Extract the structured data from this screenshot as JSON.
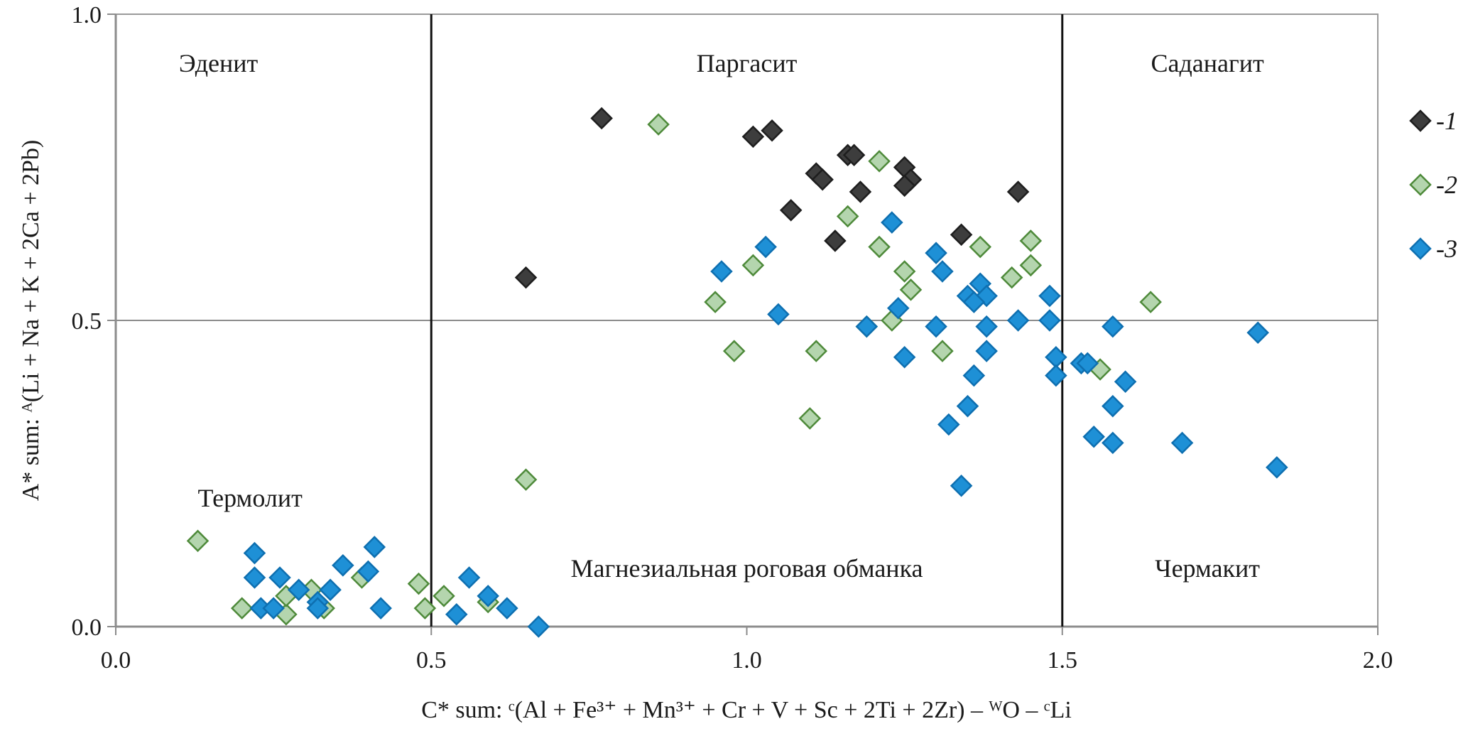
{
  "chart_data": {
    "type": "scatter",
    "title": "",
    "xlabel": "C* sum: ᶜ(Al + Fe³⁺ + Mn³⁺ + Cr + V + Sc + 2Ti + 2Zr) – ᵂO – ᶜLi",
    "ylabel": "A* sum: ᴬ(Li + Na + K + 2Ca + 2Pb)",
    "xlim": [
      0.0,
      2.0
    ],
    "ylim": [
      0.0,
      1.0
    ],
    "x_ticks": [
      "0.0",
      "0.5",
      "1.0",
      "1.5",
      "2.0"
    ],
    "y_ticks": [
      "0.0",
      "0.5",
      "1.0"
    ],
    "grid": "horizontal line at 0.5",
    "boundaries_x": [
      0.5,
      1.5
    ],
    "boundary_y": 0.5,
    "legend_position": "right",
    "fields": [
      {
        "label": "Эденит",
        "x": 0.1,
        "y": 0.92
      },
      {
        "label": "Паргасит",
        "x": 1.0,
        "y": 0.92
      },
      {
        "label": "Саданагит",
        "x": 1.73,
        "y": 0.92
      },
      {
        "label": "Термолит",
        "x": 0.13,
        "y": 0.21
      },
      {
        "label": "Магнезиальная роговая обманка",
        "x": 1.0,
        "y": 0.095
      },
      {
        "label": "Чермакит",
        "x": 1.73,
        "y": 0.095
      }
    ],
    "series": [
      {
        "name": "-1",
        "color": "#3d3d3d",
        "stroke": "#1e1e1e",
        "points": [
          [
            0.77,
            0.83
          ],
          [
            1.01,
            0.8
          ],
          [
            1.04,
            0.81
          ],
          [
            1.16,
            0.77
          ],
          [
            1.17,
            0.77
          ],
          [
            1.11,
            0.74
          ],
          [
            1.12,
            0.73
          ],
          [
            1.18,
            0.71
          ],
          [
            1.25,
            0.75
          ],
          [
            1.26,
            0.73
          ],
          [
            1.25,
            0.72
          ],
          [
            1.43,
            0.71
          ],
          [
            1.07,
            0.68
          ],
          [
            1.14,
            0.63
          ],
          [
            1.34,
            0.64
          ],
          [
            0.65,
            0.57
          ]
        ]
      },
      {
        "name": "-2",
        "color": "#b4d5ae",
        "stroke": "#4e8a3a",
        "points": [
          [
            0.86,
            0.82
          ],
          [
            1.21,
            0.76
          ],
          [
            1.16,
            0.67
          ],
          [
            1.21,
            0.62
          ],
          [
            1.37,
            0.62
          ],
          [
            1.45,
            0.63
          ],
          [
            1.01,
            0.59
          ],
          [
            1.25,
            0.58
          ],
          [
            1.42,
            0.57
          ],
          [
            1.45,
            0.59
          ],
          [
            0.95,
            0.53
          ],
          [
            1.26,
            0.55
          ],
          [
            1.64,
            0.53
          ],
          [
            1.19,
            0.49
          ],
          [
            1.23,
            0.5
          ],
          [
            0.98,
            0.45
          ],
          [
            1.11,
            0.45
          ],
          [
            1.31,
            0.45
          ],
          [
            1.56,
            0.42
          ],
          [
            1.1,
            0.34
          ],
          [
            0.65,
            0.24
          ],
          [
            0.13,
            0.14
          ],
          [
            0.2,
            0.03
          ],
          [
            0.27,
            0.02
          ],
          [
            0.27,
            0.05
          ],
          [
            0.31,
            0.06
          ],
          [
            0.33,
            0.03
          ],
          [
            0.39,
            0.08
          ],
          [
            0.48,
            0.07
          ],
          [
            0.49,
            0.03
          ],
          [
            0.52,
            0.05
          ],
          [
            0.59,
            0.04
          ]
        ]
      },
      {
        "name": "-3",
        "color": "#1e90d6",
        "stroke": "#0e6fb0",
        "points": [
          [
            1.23,
            0.66
          ],
          [
            1.03,
            0.62
          ],
          [
            1.3,
            0.61
          ],
          [
            0.96,
            0.58
          ],
          [
            1.31,
            0.58
          ],
          [
            1.37,
            0.56
          ],
          [
            1.38,
            0.54
          ],
          [
            1.35,
            0.54
          ],
          [
            1.36,
            0.53
          ],
          [
            1.48,
            0.54
          ],
          [
            1.05,
            0.51
          ],
          [
            1.24,
            0.52
          ],
          [
            1.19,
            0.49
          ],
          [
            1.3,
            0.49
          ],
          [
            1.38,
            0.49
          ],
          [
            1.43,
            0.5
          ],
          [
            1.48,
            0.5
          ],
          [
            1.58,
            0.49
          ],
          [
            1.81,
            0.48
          ],
          [
            1.25,
            0.44
          ],
          [
            1.38,
            0.45
          ],
          [
            1.49,
            0.44
          ],
          [
            1.53,
            0.43
          ],
          [
            1.54,
            0.43
          ],
          [
            1.36,
            0.41
          ],
          [
            1.49,
            0.41
          ],
          [
            1.6,
            0.4
          ],
          [
            1.35,
            0.36
          ],
          [
            1.58,
            0.36
          ],
          [
            1.32,
            0.33
          ],
          [
            1.55,
            0.31
          ],
          [
            1.58,
            0.3
          ],
          [
            1.69,
            0.3
          ],
          [
            1.84,
            0.26
          ],
          [
            1.34,
            0.23
          ],
          [
            0.22,
            0.12
          ],
          [
            0.41,
            0.13
          ],
          [
            0.22,
            0.08
          ],
          [
            0.36,
            0.1
          ],
          [
            0.4,
            0.09
          ],
          [
            0.26,
            0.08
          ],
          [
            0.56,
            0.08
          ],
          [
            0.29,
            0.06
          ],
          [
            0.34,
            0.06
          ],
          [
            0.32,
            0.04
          ],
          [
            0.59,
            0.05
          ],
          [
            0.23,
            0.03
          ],
          [
            0.25,
            0.03
          ],
          [
            0.32,
            0.03
          ],
          [
            0.42,
            0.03
          ],
          [
            0.62,
            0.03
          ],
          [
            0.54,
            0.02
          ],
          [
            0.67,
            0.0
          ]
        ]
      }
    ]
  }
}
